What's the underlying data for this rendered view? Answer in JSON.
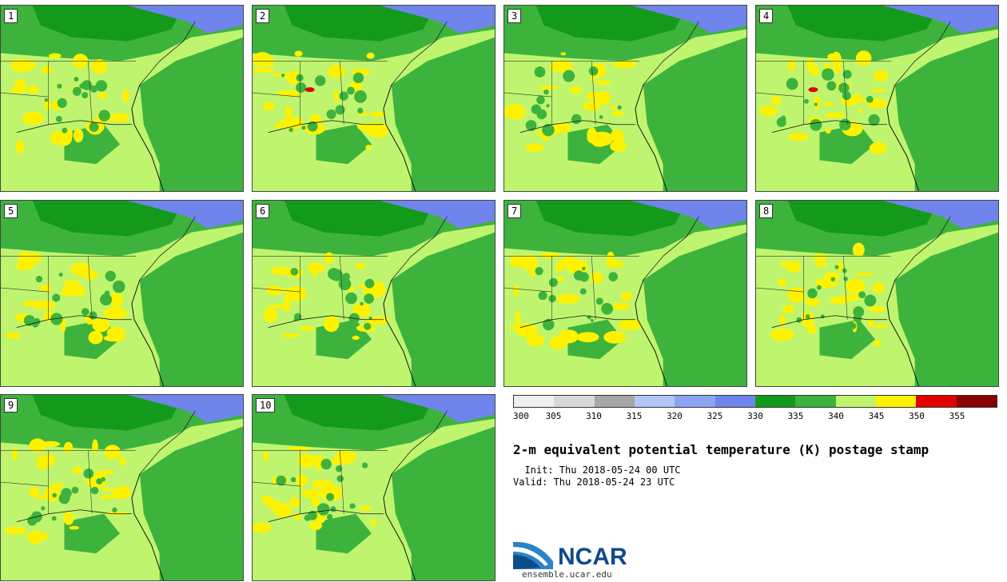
{
  "members": [
    {
      "label": "1",
      "hot": false
    },
    {
      "label": "2",
      "hot": true
    },
    {
      "label": "3",
      "hot": false
    },
    {
      "label": "4",
      "hot": true
    },
    {
      "label": "5",
      "hot": false
    },
    {
      "label": "6",
      "hot": false
    },
    {
      "label": "7",
      "hot": false
    },
    {
      "label": "8",
      "hot": false
    },
    {
      "label": "9",
      "hot": false
    },
    {
      "label": "10",
      "hot": false
    }
  ],
  "colorbar": {
    "colors": [
      "#f0f0f0",
      "#d8d8d8",
      "#a6a6a6",
      "#b3c6f5",
      "#8ca4ef",
      "#6f85eb",
      "#139a1b",
      "#3db33d",
      "#bff56e",
      "#fff200",
      "#e00000",
      "#8b0000"
    ],
    "ticks": [
      "300",
      "305",
      "310",
      "315",
      "320",
      "325",
      "330",
      "335",
      "340",
      "345",
      "350",
      "355"
    ]
  },
  "palette": {
    "water_dark": "#3db33d",
    "land_light": "#bff56e",
    "forest": "#139a1b",
    "cool": "#6f85eb",
    "warm": "#fff200",
    "hot": "#e00000"
  },
  "title": "2-m equivalent potential temperature (K) postage stamp",
  "init": "  Init: Thu 2018-05-24 00 UTC",
  "valid": "Valid: Thu 2018-05-24 23 UTC",
  "logo": {
    "text": "NCAR",
    "site": "ensemble.ucar.edu"
  }
}
